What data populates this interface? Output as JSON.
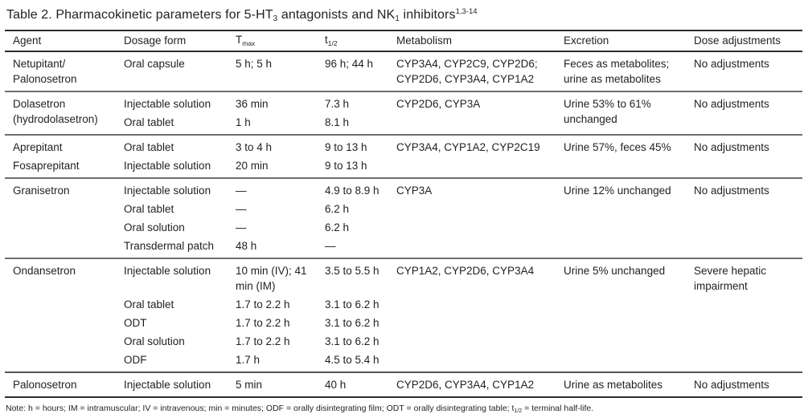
{
  "page": {
    "background": "#ffffff",
    "text_color": "#231f20",
    "rule_dark": "#2e2e30",
    "rule_gray": "#6d6e71"
  },
  "title": {
    "part1": "Table 2. Pharmacokinetic parameters for 5-HT",
    "sub1": "3",
    "part2": " antagonists and NK",
    "sub2": "1",
    "part3": " inhibitors",
    "sup": "1,3-14"
  },
  "columns": {
    "agent": "Agent",
    "dosage": "Dosage form",
    "tmax_base": "T",
    "tmax_sub": "max",
    "thalf_base": "t",
    "thalf_sub": "1/2",
    "metabolism": "Metabolism",
    "excretion": "Excretion",
    "dose": "Dose adjustments"
  },
  "groups": [
    {
      "agent_lines": [
        "Netupitant/",
        "Palonosetron"
      ],
      "rows": [
        {
          "dosage": "Oral capsule",
          "tmax": "5 h; 5 h",
          "thalf": "96 h; 44 h"
        }
      ],
      "metabolism": "CYP3A4, CYP2C9, CYP2D6; CYP2D6, CYP3A4, CYP1A2",
      "excretion": "Feces as metabolites; urine as metabolites",
      "dose_adjustments": "No adjustments"
    },
    {
      "agent": "Dolasetron (hydrodolasetron)",
      "rows": [
        {
          "dosage": "Injectable solution",
          "tmax": "36 min",
          "thalf": "7.3 h"
        },
        {
          "dosage": "Oral tablet",
          "tmax": "1 h",
          "thalf": "8.1 h"
        }
      ],
      "metabolism": "CYP2D6, CYP3A",
      "excretion": "Urine 53% to 61% unchanged",
      "dose_adjustments": "No adjustments"
    },
    {
      "rows": [
        {
          "agent": "Aprepitant",
          "dosage": "Oral tablet",
          "tmax": "3 to 4 h",
          "thalf": "9 to 13 h"
        },
        {
          "agent": "Fosaprepitant",
          "dosage": "Injectable solution",
          "tmax": "20 min",
          "thalf": "9 to 13 h"
        }
      ],
      "metabolism": "CYP3A4, CYP1A2, CYP2C19",
      "excretion": "Urine 57%, feces 45%",
      "dose_adjustments": "No adjustments"
    },
    {
      "agent": "Granisetron",
      "rows": [
        {
          "dosage": "Injectable solution",
          "tmax": "—",
          "thalf": "4.9 to 8.9 h"
        },
        {
          "dosage": "Oral tablet",
          "tmax": "—",
          "thalf": "6.2 h"
        },
        {
          "dosage": "Oral solution",
          "tmax": "—",
          "thalf": "6.2 h"
        },
        {
          "dosage": "Transdermal patch",
          "tmax": "48 h",
          "thalf": "—"
        }
      ],
      "metabolism": "CYP3A",
      "excretion": "Urine 12% unchanged",
      "dose_adjustments": "No adjustments"
    },
    {
      "agent": "Ondansetron",
      "rows": [
        {
          "dosage": "Injectable solution",
          "tmax": "10 min (IV); 41 min (IM)",
          "thalf": "3.5 to 5.5 h"
        },
        {
          "dosage": "Oral tablet",
          "tmax": "1.7 to 2.2 h",
          "thalf": "3.1 to 6.2 h"
        },
        {
          "dosage": "ODT",
          "tmax": "1.7 to 2.2 h",
          "thalf": "3.1 to 6.2 h"
        },
        {
          "dosage": "Oral solution",
          "tmax": "1.7 to 2.2 h",
          "thalf": "3.1 to 6.2 h"
        },
        {
          "dosage": "ODF",
          "tmax": "1.7 h",
          "thalf": "4.5 to 5.4 h"
        }
      ],
      "metabolism": "CYP1A2, CYP2D6, CYP3A4",
      "excretion": "Urine 5% unchanged",
      "dose_adjustments": "Severe hepatic impairment"
    },
    {
      "agent": "Palonosetron",
      "rows": [
        {
          "dosage": "Injectable solution",
          "tmax": "5 min",
          "thalf": "40 h"
        }
      ],
      "metabolism": "CYP2D6, CYP3A4, CYP1A2",
      "excretion": "Urine as metabolites",
      "dose_adjustments": "No adjustments"
    }
  ],
  "footnote": {
    "part1": "Note: h = hours; IM = intramuscular; IV = intravenous; min = minutes; ODF = orally disintegrating film; ODT = orally disintegrating table; t",
    "sub": "1/2",
    "part2": " = terminal half-life."
  }
}
